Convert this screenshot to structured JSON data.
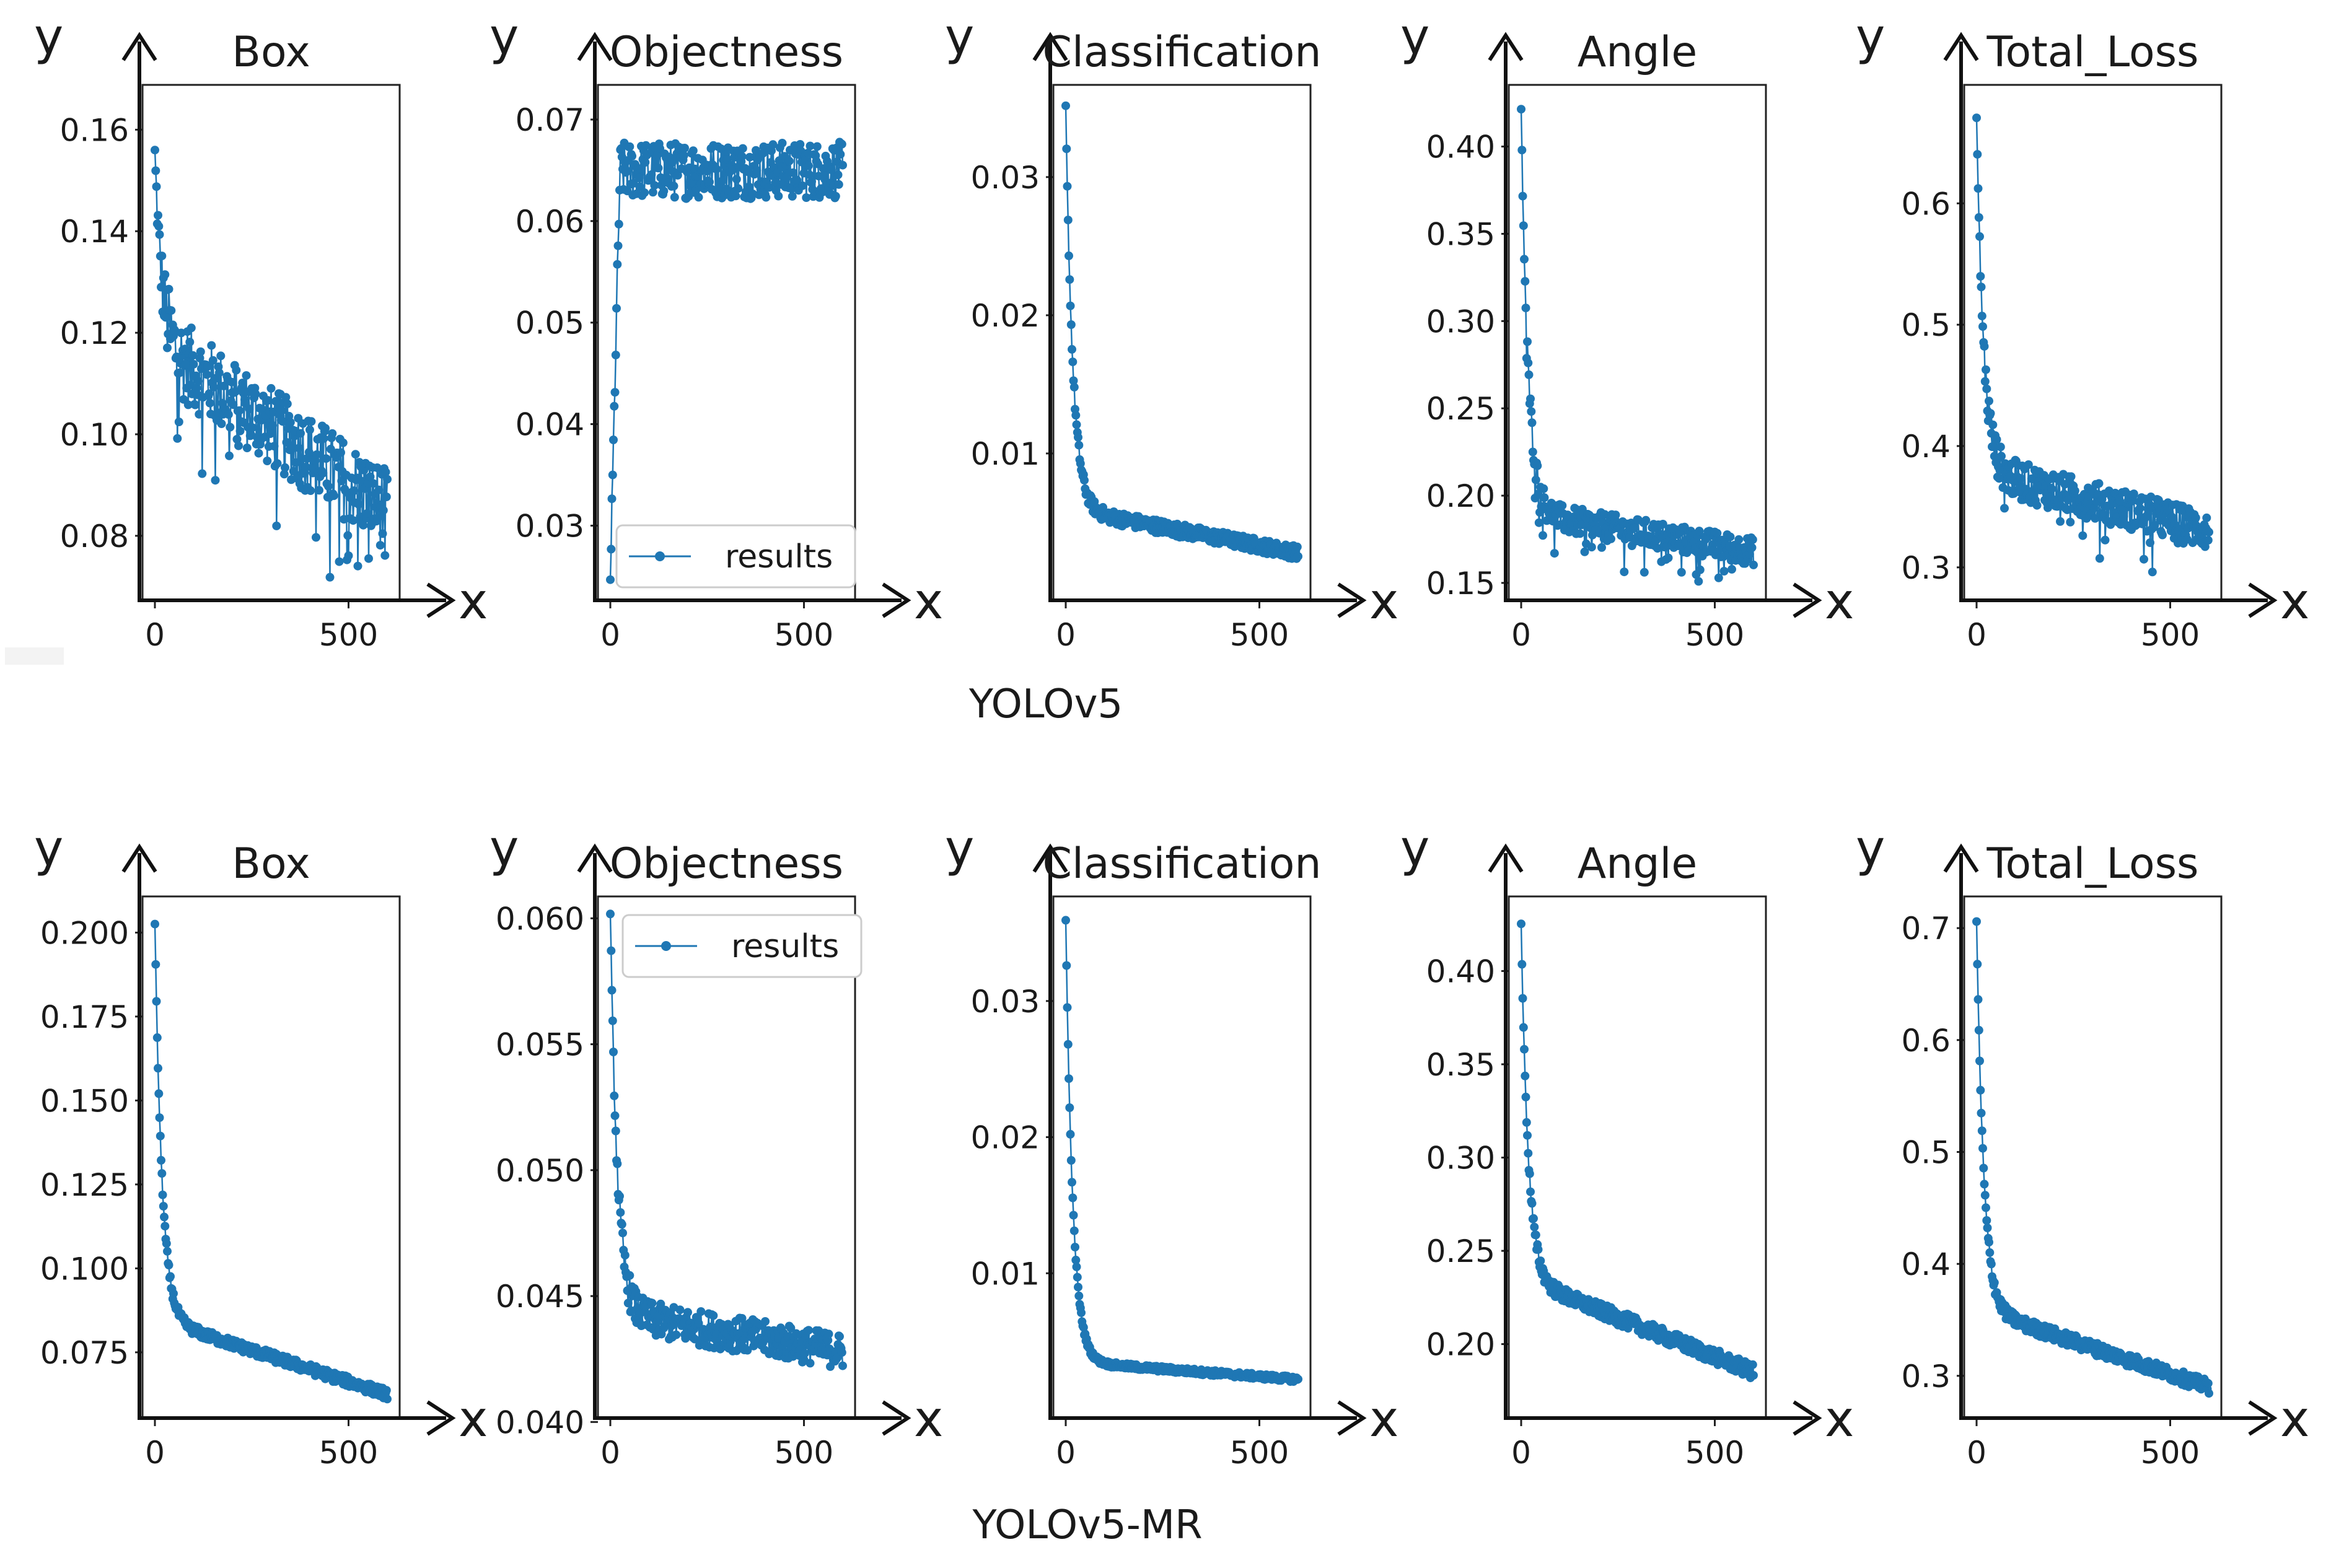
{
  "figure": {
    "captions": [
      "YOLOv5",
      "YOLOv5-MR"
    ],
    "series_color": "#1f77b4",
    "axis_letter_x": "x",
    "axis_letter_y": "y",
    "legend_label": "results"
  },
  "chart_data": [
    {
      "model": "YOLOv5",
      "title": "Box",
      "type": "line",
      "x_range": [
        0,
        600
      ],
      "x_ticks": [
        0,
        500
      ],
      "ylim": [
        0.069,
        0.167
      ],
      "y_ticks": [
        0.08,
        0.1,
        0.12,
        0.14,
        0.16
      ],
      "tick_decimals": 2,
      "trend": {
        "start": 0.155,
        "mid": 0.118,
        "end": 0.085,
        "noise": 0.008,
        "dip": 0.16
      },
      "legend": false
    },
    {
      "model": "YOLOv5",
      "title": "Objectness",
      "type": "line",
      "x_range": [
        0,
        600
      ],
      "x_ticks": [
        0,
        500
      ],
      "ylim": [
        0.0235,
        0.0725
      ],
      "y_ticks": [
        0.03,
        0.04,
        0.05,
        0.06,
        0.07
      ],
      "tick_decimals": 2,
      "trend": {
        "start": 0.025,
        "rise_to": 0.065,
        "end": 0.065,
        "noise": 0.0028,
        "rise": true
      },
      "legend": true
    },
    {
      "model": "YOLOv5",
      "title": "Classification",
      "type": "line",
      "x_range": [
        0,
        600
      ],
      "x_ticks": [
        0,
        500
      ],
      "ylim": [
        0.0,
        0.036
      ],
      "y_ticks": [
        0.01,
        0.02,
        0.03
      ],
      "tick_decimals": 2,
      "trend": {
        "start": 0.035,
        "mid": 0.006,
        "end": 0.0028,
        "noise": 0.0005,
        "dip": 0.0
      },
      "legend": false
    },
    {
      "model": "YOLOv5",
      "title": "Angle",
      "type": "line",
      "x_range": [
        0,
        600
      ],
      "x_ticks": [
        0,
        500
      ],
      "ylim": [
        0.145,
        0.43
      ],
      "y_ticks": [
        0.15,
        0.2,
        0.25,
        0.3,
        0.35,
        0.4
      ],
      "tick_decimals": 2,
      "trend": {
        "start": 0.42,
        "mid": 0.19,
        "end": 0.168,
        "noise": 0.008,
        "dip": 0.03
      },
      "legend": false
    },
    {
      "model": "YOLOv5",
      "title": "Total_Loss",
      "type": "line",
      "x_range": [
        0,
        600
      ],
      "x_ticks": [
        0,
        500
      ],
      "ylim": [
        0.28,
        0.69
      ],
      "y_ticks": [
        0.3,
        0.4,
        0.5,
        0.6
      ],
      "tick_decimals": 1,
      "trend": {
        "start": 0.67,
        "mid": 0.38,
        "end": 0.33,
        "noise": 0.016,
        "dip": 0.05
      },
      "legend": false
    },
    {
      "model": "YOLOv5-MR",
      "title": "Box",
      "type": "line",
      "x_range": [
        0,
        600
      ],
      "x_ticks": [
        0,
        500
      ],
      "ylim": [
        0.058,
        0.208
      ],
      "y_ticks": [
        0.075,
        0.1,
        0.125,
        0.15,
        0.175,
        0.2
      ],
      "tick_decimals": 3,
      "trend": {
        "start": 0.2025,
        "mid": 0.085,
        "end": 0.0625,
        "noise": 0.0015,
        "dip": 0.0
      },
      "legend": false
    },
    {
      "model": "YOLOv5-MR",
      "title": "Objectness",
      "type": "line",
      "x_range": [
        0,
        600
      ],
      "x_ticks": [
        0,
        500
      ],
      "ylim": [
        0.0405,
        0.0605
      ],
      "y_ticks": [
        0.04,
        0.045,
        0.05,
        0.055,
        0.06
      ],
      "tick_decimals": 3,
      "trend": {
        "start": 0.0601,
        "mid": 0.0443,
        "end": 0.0428,
        "noise": 0.0007,
        "dip": 0.0
      },
      "legend": true
    },
    {
      "model": "YOLOv5-MR",
      "title": "Classification",
      "type": "line",
      "x_range": [
        0,
        600
      ],
      "x_ticks": [
        0,
        500
      ],
      "ylim": [
        0.0,
        0.037
      ],
      "y_ticks": [
        0.01,
        0.02,
        0.03
      ],
      "tick_decimals": 2,
      "trend": {
        "start": 0.036,
        "mid": 0.0035,
        "end": 0.0022,
        "noise": 0.0002,
        "dip": 0.0
      },
      "legend": false
    },
    {
      "model": "YOLOv5-MR",
      "title": "Angle",
      "type": "line",
      "x_range": [
        0,
        600
      ],
      "x_ticks": [
        0,
        500
      ],
      "ylim": [
        0.165,
        0.435
      ],
      "y_ticks": [
        0.2,
        0.25,
        0.3,
        0.35,
        0.4
      ],
      "tick_decimals": 2,
      "trend": {
        "start": 0.425,
        "mid": 0.235,
        "end": 0.185,
        "noise": 0.004,
        "dip": 0.0
      },
      "legend": false
    },
    {
      "model": "YOLOv5-MR",
      "title": "Total_Loss",
      "type": "line",
      "x_range": [
        0,
        600
      ],
      "x_ticks": [
        0,
        500
      ],
      "ylim": [
        0.27,
        0.72
      ],
      "y_ticks": [
        0.3,
        0.4,
        0.5,
        0.6,
        0.7
      ],
      "tick_decimals": 1,
      "trend": {
        "start": 0.705,
        "mid": 0.36,
        "end": 0.29,
        "noise": 0.006,
        "dip": 0.0
      },
      "legend": false
    }
  ]
}
